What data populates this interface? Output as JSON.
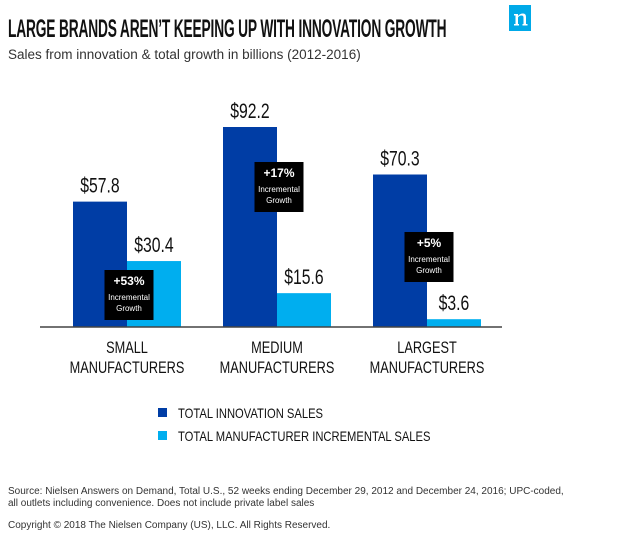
{
  "header": {
    "title": "LARGE BRANDS AREN’T KEEPING UP WITH INNOVATION GROWTH",
    "subtitle": "Sales from innovation & total growth in billions (2012-2016)",
    "logo": "n"
  },
  "chart_data": {
    "type": "bar",
    "title": "LARGE BRANDS AREN’T KEEPING UP WITH INNOVATION GROWTH",
    "subtitle": "Sales from innovation & total growth in billions (2012-2016)",
    "categories": [
      [
        "SMALL",
        "MANUFACTURERS"
      ],
      [
        "MEDIUM",
        "MANUFACTURERS"
      ],
      [
        "LARGEST",
        "MANUFACTURERS"
      ]
    ],
    "series": [
      {
        "name": "TOTAL INNOVATION SALES",
        "values": [
          57.8,
          92.2,
          70.3
        ],
        "labels": [
          "$57.8",
          "$92.2",
          "$70.3"
        ],
        "color": "#003da5"
      },
      {
        "name": "TOTAL MANUFACTURER INCREMENTAL SALES",
        "values": [
          30.4,
          15.6,
          3.6
        ],
        "labels": [
          "$30.4",
          "$15.6",
          "$3.6"
        ],
        "color": "#00aeef"
      }
    ],
    "annotations": [
      {
        "value": "+53%",
        "text": [
          "Incremental",
          "Growth"
        ]
      },
      {
        "value": "+17%",
        "text": [
          "Incremental",
          "Growth"
        ]
      },
      {
        "value": "+5%",
        "text": [
          "Incremental",
          "Growth"
        ]
      }
    ],
    "ylim": [
      0,
      92.2
    ],
    "grid": false,
    "legend": "bottom"
  },
  "footer": {
    "source": "Source: Nielsen Answers on Demand, Total U.S., 52 weeks ending December 29, 2012 and December 24, 2016; UPC-coded, all outlets including convenience. Does not include private label sales",
    "copyright": "Copyright © 2018 The Nielsen Company (US), LLC. All Rights Reserved."
  }
}
